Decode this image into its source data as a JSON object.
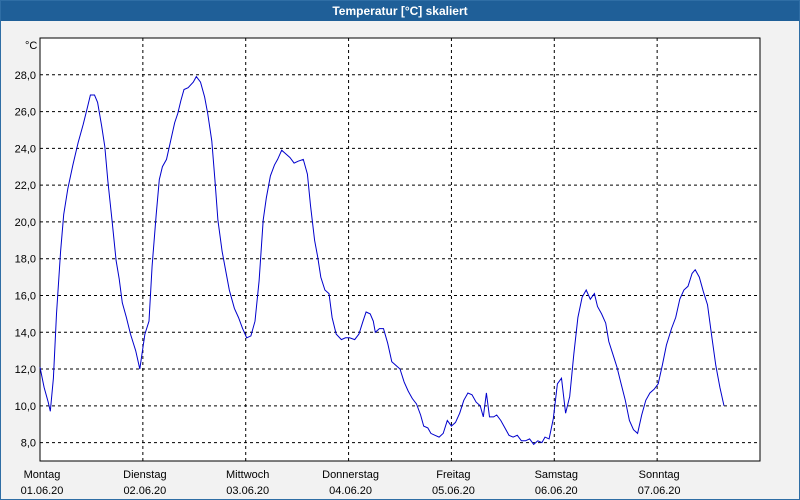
{
  "chart_data": {
    "type": "line",
    "title": "Temperatur [°C] skaliert",
    "ylabel": "°C",
    "ylim": [
      7,
      30
    ],
    "y_ticks": [
      "8,0",
      "10,0",
      "12,0",
      "14,0",
      "16,0",
      "18,0",
      "20,0",
      "22,0",
      "24,0",
      "26,0",
      "28,0"
    ],
    "xlim_days": [
      0,
      7
    ],
    "x_ticks": [
      {
        "day": "Montag",
        "date": "01.06.20"
      },
      {
        "day": "Dienstag",
        "date": "02.06.20"
      },
      {
        "day": "Mittwoch",
        "date": "03.06.20"
      },
      {
        "day": "Donnerstag",
        "date": "04.06.20"
      },
      {
        "day": "Freitag",
        "date": "05.06.20"
      },
      {
        "day": "Samstag",
        "date": "06.06.20"
      },
      {
        "day": "Sonntag",
        "date": "07.06.20"
      }
    ],
    "grid": true,
    "series": [
      {
        "color": "#0000cc",
        "points": [
          [
            0.0,
            12.1
          ],
          [
            0.04,
            11.0
          ],
          [
            0.08,
            10.2
          ],
          [
            0.1,
            9.7
          ],
          [
            0.13,
            11.5
          ],
          [
            0.16,
            15.0
          ],
          [
            0.2,
            18.4
          ],
          [
            0.23,
            20.4
          ],
          [
            0.27,
            21.8
          ],
          [
            0.32,
            23.1
          ],
          [
            0.37,
            24.3
          ],
          [
            0.42,
            25.3
          ],
          [
            0.46,
            26.2
          ],
          [
            0.49,
            26.9
          ],
          [
            0.53,
            26.9
          ],
          [
            0.56,
            26.5
          ],
          [
            0.6,
            25.2
          ],
          [
            0.63,
            24.1
          ],
          [
            0.66,
            22.2
          ],
          [
            0.7,
            20.1
          ],
          [
            0.74,
            17.9
          ],
          [
            0.77,
            16.9
          ],
          [
            0.8,
            15.6
          ],
          [
            0.84,
            14.8
          ],
          [
            0.88,
            13.9
          ],
          [
            0.93,
            13.0
          ],
          [
            0.97,
            12.0
          ],
          [
            1.02,
            13.9
          ],
          [
            1.06,
            14.6
          ],
          [
            1.09,
            17.6
          ],
          [
            1.13,
            20.4
          ],
          [
            1.16,
            22.3
          ],
          [
            1.19,
            23.0
          ],
          [
            1.23,
            23.4
          ],
          [
            1.27,
            24.4
          ],
          [
            1.31,
            25.4
          ],
          [
            1.34,
            25.9
          ],
          [
            1.37,
            26.6
          ],
          [
            1.4,
            27.2
          ],
          [
            1.44,
            27.3
          ],
          [
            1.49,
            27.6
          ],
          [
            1.52,
            27.9
          ],
          [
            1.56,
            27.6
          ],
          [
            1.6,
            26.8
          ],
          [
            1.63,
            25.9
          ],
          [
            1.67,
            24.4
          ],
          [
            1.7,
            22.3
          ],
          [
            1.73,
            20.1
          ],
          [
            1.77,
            18.4
          ],
          [
            1.81,
            17.2
          ],
          [
            1.84,
            16.3
          ],
          [
            1.89,
            15.3
          ],
          [
            1.93,
            14.8
          ],
          [
            1.97,
            14.2
          ],
          [
            2.01,
            13.7
          ],
          [
            2.05,
            13.8
          ],
          [
            2.09,
            14.6
          ],
          [
            2.13,
            16.8
          ],
          [
            2.17,
            20.1
          ],
          [
            2.2,
            21.3
          ],
          [
            2.24,
            22.5
          ],
          [
            2.28,
            23.1
          ],
          [
            2.31,
            23.4
          ],
          [
            2.35,
            23.9
          ],
          [
            2.39,
            23.7
          ],
          [
            2.43,
            23.5
          ],
          [
            2.47,
            23.2
          ],
          [
            2.51,
            23.3
          ],
          [
            2.56,
            23.4
          ],
          [
            2.6,
            22.6
          ],
          [
            2.63,
            20.9
          ],
          [
            2.67,
            19.0
          ],
          [
            2.7,
            18.1
          ],
          [
            2.73,
            17.0
          ],
          [
            2.77,
            16.3
          ],
          [
            2.81,
            16.1
          ],
          [
            2.84,
            14.8
          ],
          [
            2.88,
            13.9
          ],
          [
            2.93,
            13.6
          ],
          [
            2.97,
            13.7
          ],
          [
            3.01,
            13.7
          ],
          [
            3.06,
            13.6
          ],
          [
            3.1,
            13.9
          ],
          [
            3.14,
            14.6
          ],
          [
            3.17,
            15.1
          ],
          [
            3.21,
            15.0
          ],
          [
            3.24,
            14.6
          ],
          [
            3.26,
            14.0
          ],
          [
            3.3,
            14.2
          ],
          [
            3.34,
            14.2
          ],
          [
            3.38,
            13.4
          ],
          [
            3.42,
            12.4
          ],
          [
            3.46,
            12.2
          ],
          [
            3.5,
            12.0
          ],
          [
            3.54,
            11.3
          ],
          [
            3.58,
            10.8
          ],
          [
            3.62,
            10.4
          ],
          [
            3.66,
            10.1
          ],
          [
            3.7,
            9.5
          ],
          [
            3.73,
            8.9
          ],
          [
            3.77,
            8.8
          ],
          [
            3.8,
            8.5
          ],
          [
            3.84,
            8.4
          ],
          [
            3.88,
            8.3
          ],
          [
            3.92,
            8.5
          ],
          [
            3.96,
            9.2
          ],
          [
            4.0,
            8.9
          ],
          [
            4.04,
            9.1
          ],
          [
            4.08,
            9.6
          ],
          [
            4.12,
            10.3
          ],
          [
            4.16,
            10.7
          ],
          [
            4.2,
            10.6
          ],
          [
            4.24,
            10.2
          ],
          [
            4.28,
            10.0
          ],
          [
            4.31,
            9.4
          ],
          [
            4.34,
            10.7
          ],
          [
            4.37,
            9.4
          ],
          [
            4.41,
            9.4
          ],
          [
            4.44,
            9.5
          ],
          [
            4.48,
            9.2
          ],
          [
            4.52,
            8.8
          ],
          [
            4.56,
            8.4
          ],
          [
            4.6,
            8.3
          ],
          [
            4.64,
            8.4
          ],
          [
            4.68,
            8.1
          ],
          [
            4.72,
            8.1
          ],
          [
            4.76,
            8.2
          ],
          [
            4.8,
            7.9
          ],
          [
            4.84,
            8.1
          ],
          [
            4.88,
            8.0
          ],
          [
            4.91,
            8.3
          ],
          [
            4.95,
            8.2
          ],
          [
            4.99,
            9.3
          ],
          [
            5.03,
            11.2
          ],
          [
            5.07,
            11.5
          ],
          [
            5.11,
            9.6
          ],
          [
            5.15,
            10.5
          ],
          [
            5.19,
            12.8
          ],
          [
            5.23,
            14.8
          ],
          [
            5.27,
            15.9
          ],
          [
            5.31,
            16.3
          ],
          [
            5.35,
            15.8
          ],
          [
            5.39,
            16.1
          ],
          [
            5.42,
            15.4
          ],
          [
            5.46,
            15.0
          ],
          [
            5.5,
            14.5
          ],
          [
            5.53,
            13.5
          ],
          [
            5.57,
            12.8
          ],
          [
            5.61,
            12.1
          ],
          [
            5.65,
            11.2
          ],
          [
            5.69,
            10.3
          ],
          [
            5.73,
            9.2
          ],
          [
            5.77,
            8.7
          ],
          [
            5.81,
            8.5
          ],
          [
            5.85,
            9.5
          ],
          [
            5.89,
            10.3
          ],
          [
            5.93,
            10.7
          ],
          [
            5.97,
            10.9
          ],
          [
            6.01,
            11.2
          ],
          [
            6.05,
            12.2
          ],
          [
            6.09,
            13.3
          ],
          [
            6.14,
            14.2
          ],
          [
            6.18,
            14.8
          ],
          [
            6.22,
            15.8
          ],
          [
            6.26,
            16.3
          ],
          [
            6.3,
            16.5
          ],
          [
            6.34,
            17.2
          ],
          [
            6.37,
            17.4
          ],
          [
            6.41,
            17.0
          ],
          [
            6.45,
            16.2
          ],
          [
            6.49,
            15.5
          ],
          [
            6.53,
            13.8
          ],
          [
            6.57,
            12.2
          ],
          [
            6.61,
            11.0
          ],
          [
            6.65,
            10.0
          ]
        ]
      }
    ]
  }
}
